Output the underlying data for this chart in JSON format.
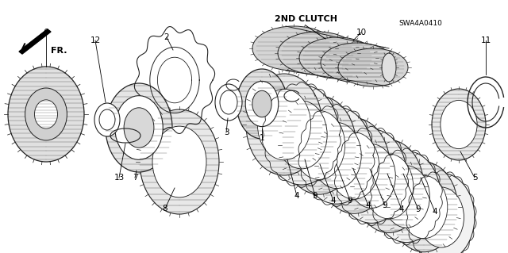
{
  "bg_color": "#ffffff",
  "border_color": "#4169E1",
  "label_2nd_clutch": "2ND CLUTCH",
  "label_fr": "FR.",
  "label_code": "SWA4A0410",
  "text_color": "#000000",
  "gear_color": "#222222",
  "hatch_color": "#555555"
}
